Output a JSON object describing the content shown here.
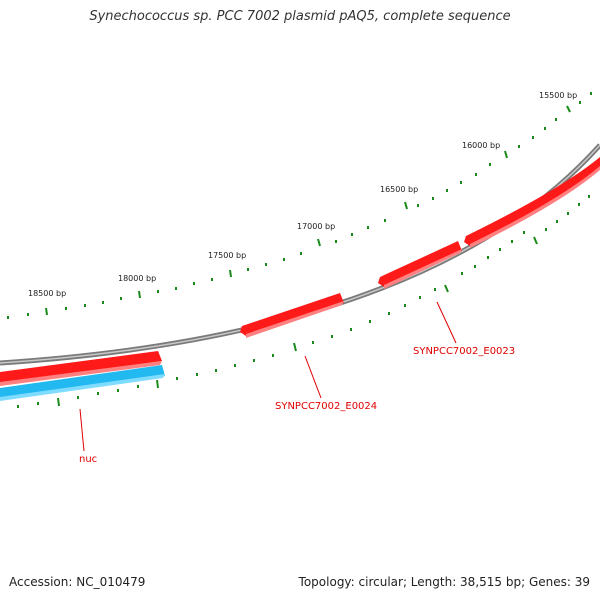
{
  "title": "Synechococcus sp. PCC 7002 plasmid pAQ5, complete sequence",
  "footer": {
    "accession": "Accession: NC_010479",
    "summary": "Topology: circular; Length: 38,515 bp; Genes: 39"
  },
  "map": {
    "colors": {
      "backbone": "#8c8c8c",
      "forward_gene": "#ff1a1a",
      "reverse_gene": "#22b8f0",
      "ticks": "#1a8a1a",
      "label": "#e00000"
    },
    "tick_labels": [
      "15500 bp",
      "16000 bp",
      "16500 bp",
      "17000 bp",
      "17500 bp",
      "18000 bp",
      "18500 bp"
    ],
    "genes": [
      {
        "label": "SYNPCC7002_E0023",
        "strand": "forward"
      },
      {
        "label": "SYNPCC7002_E0024",
        "strand": "forward"
      },
      {
        "label": "nuc",
        "strand": "reverse"
      }
    ]
  }
}
